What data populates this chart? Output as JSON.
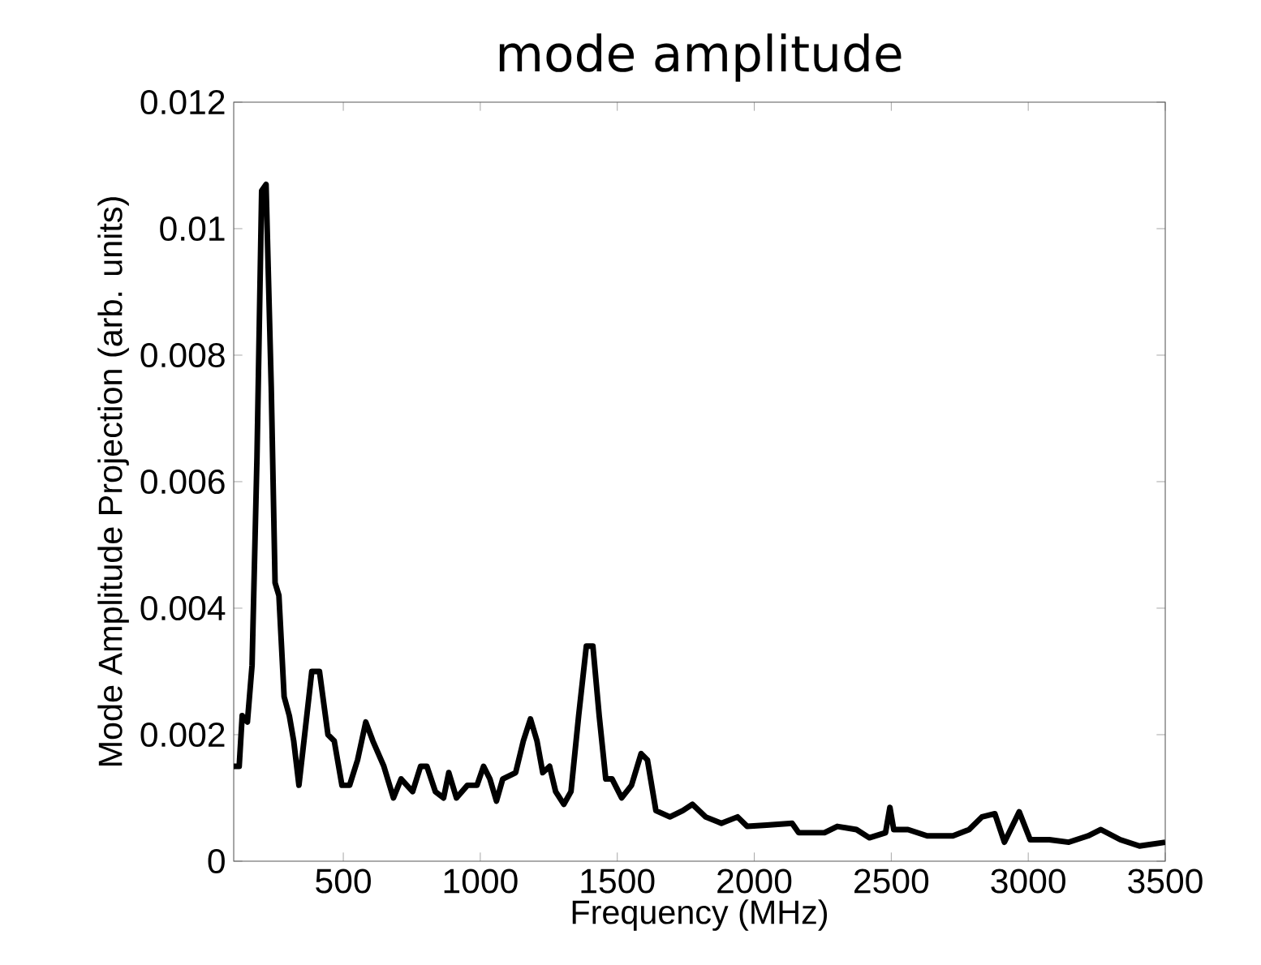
{
  "chart_data": {
    "type": "line",
    "title": "mode amplitude",
    "xlabel": "Frequency (MHz)",
    "ylabel": "Mode Amplitude Projection (arb. units)",
    "xlim": [
      100,
      3500
    ],
    "ylim": [
      0,
      0.012
    ],
    "xticks": [
      500,
      1000,
      1500,
      2000,
      2500,
      3000,
      3500
    ],
    "yticks": [
      0,
      0.002,
      0.004,
      0.006,
      0.008,
      0.01,
      0.012
    ],
    "grid": false,
    "series": [
      {
        "color": "#000000",
        "line_style": "solid",
        "x": [
          100,
          120,
          131,
          150,
          167,
          185,
          202,
          218,
          237,
          251,
          265,
          284,
          303,
          319,
          338,
          359,
          385,
          413,
          444,
          467,
          495,
          523,
          552,
          582,
          608,
          648,
          683,
          711,
          753,
          782,
          805,
          836,
          866,
          885,
          913,
          953,
          988,
          1012,
          1035,
          1059,
          1082,
          1129,
          1157,
          1183,
          1207,
          1228,
          1253,
          1275,
          1305,
          1331,
          1359,
          1387,
          1411,
          1434,
          1458,
          1481,
          1516,
          1552,
          1587,
          1610,
          1641,
          1692,
          1739,
          1774,
          1822,
          1880,
          1939,
          1974,
          2045,
          2138,
          2162,
          2256,
          2303,
          2373,
          2420,
          2479,
          2495,
          2509,
          2561,
          2631,
          2725,
          2784,
          2831,
          2878,
          2913,
          2967,
          3007,
          3077,
          3148,
          3218,
          3265,
          3336,
          3406,
          3500
        ],
        "values": [
          0.0015,
          0.0015,
          0.0023,
          0.0022,
          0.0031,
          0.0064,
          0.0106,
          0.0107,
          0.0075,
          0.0044,
          0.0042,
          0.0026,
          0.0023,
          0.0019,
          0.0012,
          0.002,
          0.003,
          0.003,
          0.002,
          0.0019,
          0.0012,
          0.0012,
          0.0016,
          0.0022,
          0.0019,
          0.0015,
          0.001,
          0.0013,
          0.0011,
          0.0015,
          0.0015,
          0.0011,
          0.001,
          0.0014,
          0.001,
          0.0012,
          0.0012,
          0.0015,
          0.0013,
          0.00095,
          0.0013,
          0.0014,
          0.0019,
          0.00225,
          0.0019,
          0.0014,
          0.0015,
          0.0011,
          0.0009,
          0.0011,
          0.0023,
          0.0034,
          0.0034,
          0.0023,
          0.0013,
          0.0013,
          0.001,
          0.0012,
          0.0017,
          0.0016,
          0.0008,
          0.0007,
          0.0008,
          0.0009,
          0.0007,
          0.0006,
          0.0007,
          0.00055,
          0.00057,
          0.0006,
          0.00045,
          0.00045,
          0.00055,
          0.0005,
          0.00037,
          0.00045,
          0.00085,
          0.0005,
          0.0005,
          0.0004,
          0.0004,
          0.0005,
          0.0007,
          0.00075,
          0.0003,
          0.00078,
          0.00034,
          0.00034,
          0.0003,
          0.0004,
          0.0005,
          0.00034,
          0.00024,
          0.0003
        ]
      }
    ]
  }
}
